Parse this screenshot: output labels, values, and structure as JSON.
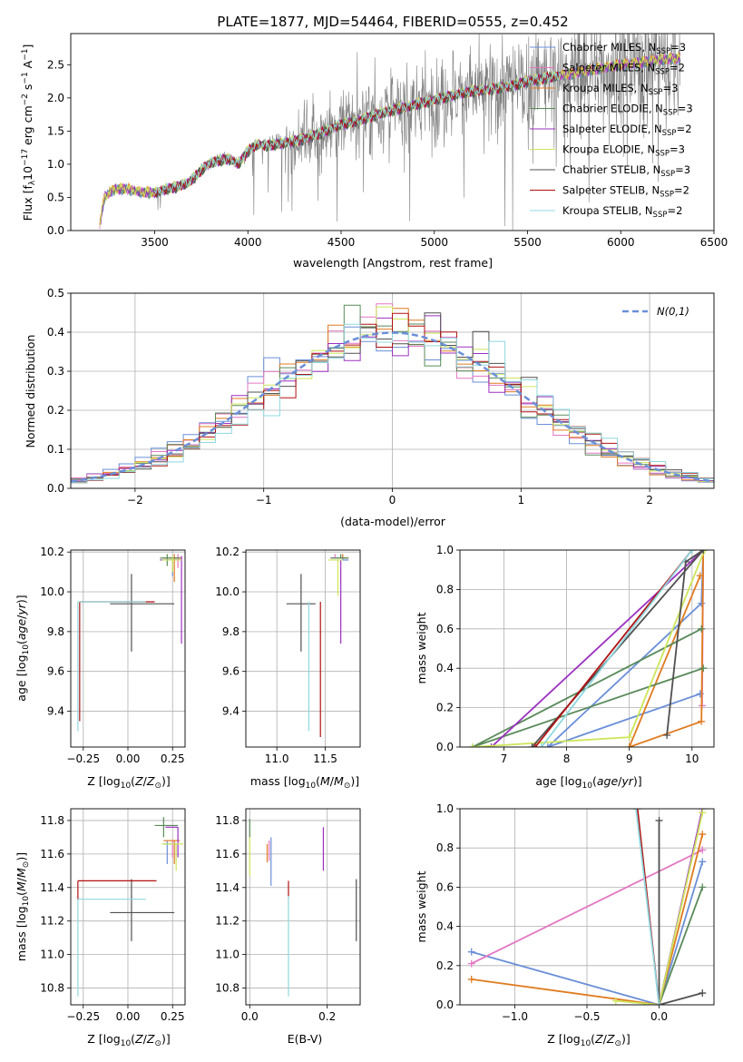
{
  "figure_title": "PLATE=1877, MJD=54464, FIBERID=0555, z=0.452",
  "colors": {
    "Chabrier MILES": "#6a8fd8",
    "Salpeter MILES": "#e377c2",
    "Kroupa MILES": "#e07b20",
    "Chabrier ELODIE": "#5a8a5a",
    "Salpeter ELODIE": "#9b30c0",
    "Kroupa ELODIE": "#cde65a",
    "Chabrier STELIB": "#505050",
    "Salpeter STELIB": "#b01010",
    "Kroupa STELIB": "#8fd8e0",
    "data": "#808080",
    "gaussian": "#6a8fd8"
  },
  "chart_data": [
    {
      "id": "spectrum",
      "type": "line",
      "xlabel": "wavelength [Angstrom, rest frame]",
      "ylabel": "Flux [f_λ 10^-17 erg cm^-2 s^-1 A^-1]",
      "xlim": [
        3050,
        6500
      ],
      "ylim": [
        0,
        2.97
      ],
      "xticks": [
        3500,
        4000,
        4500,
        5000,
        5500,
        6000,
        6500
      ],
      "yticks": [
        0.0,
        0.5,
        1.0,
        1.5,
        2.0,
        2.5
      ],
      "grid": false,
      "legend_position": "upper-right",
      "legend": [
        {
          "model": "Chabrier MILES",
          "nssp": "3"
        },
        {
          "model": "Salpeter MILES",
          "nssp": "2"
        },
        {
          "model": "Kroupa MILES",
          "nssp": "3"
        },
        {
          "model": "Chabrier ELODIE",
          "nssp": "3"
        },
        {
          "model": "Salpeter ELODIE",
          "nssp": "2"
        },
        {
          "model": "Kroupa ELODIE",
          "nssp": "3"
        },
        {
          "model": "Chabrier STELIB",
          "nssp": "3"
        },
        {
          "model": "Salpeter STELIB",
          "nssp": "2"
        },
        {
          "model": "Kroupa STELIB",
          "nssp": "2"
        }
      ],
      "model_continuum": {
        "wavelength": [
          3200,
          3230,
          3280,
          3350,
          3420,
          3500,
          3560,
          3620,
          3680,
          3720,
          3760,
          3800,
          3850,
          3900,
          3950,
          4000,
          4050,
          4100,
          4200,
          4300,
          4400,
          4500,
          4600,
          4700,
          4800,
          4900,
          5000,
          5100,
          5200,
          5300,
          5400,
          5500,
          5600,
          5700,
          5800,
          5900,
          6000,
          6100,
          6200,
          6320
        ],
        "flux": [
          0.0,
          0.5,
          0.62,
          0.63,
          0.58,
          0.57,
          0.62,
          0.66,
          0.72,
          0.82,
          0.94,
          1.02,
          1.06,
          1.08,
          1.0,
          1.2,
          1.3,
          1.28,
          1.32,
          1.38,
          1.48,
          1.6,
          1.66,
          1.76,
          1.83,
          1.9,
          1.97,
          2.04,
          2.1,
          2.13,
          2.17,
          2.25,
          2.3,
          2.35,
          2.4,
          2.45,
          2.5,
          2.53,
          2.57,
          2.6
        ]
      }
    },
    {
      "id": "residuals",
      "type": "histogram",
      "xlabel": "(data-model)/error",
      "ylabel": "Normed distribution",
      "xlim": [
        -2.5,
        2.5
      ],
      "ylim": [
        0,
        0.5
      ],
      "xticks": [
        -2,
        -1,
        0,
        1,
        2
      ],
      "yticks": [
        0.0,
        0.1,
        0.2,
        0.3,
        0.4,
        0.5
      ],
      "grid": true,
      "legend_position": "upper-right",
      "legend_label": "N(0,1)",
      "bins": 40,
      "reference_curve": "standard normal density, dashed"
    },
    {
      "id": "Z-age",
      "type": "scatter",
      "xlabel": "Z [log10(Z/Z⊙)]",
      "ylabel": "age [log10(age/yr)]",
      "xlim": [
        -0.32,
        0.32
      ],
      "ylim": [
        9.22,
        10.21
      ],
      "xticks": [
        -0.25,
        0.0,
        0.25
      ],
      "yticks": [
        9.4,
        9.6,
        9.8,
        10.0,
        10.2
      ],
      "grid": true,
      "points": [
        {
          "model": "Chabrier MILES",
          "x": 0.25,
          "y": 10.16,
          "xerr": [
            0.07,
            0.05
          ],
          "yerr": [
            0.08,
            0.02
          ]
        },
        {
          "model": "Salpeter MILES",
          "x": 0.28,
          "y": 10.17,
          "xerr": [
            0.05,
            0.02
          ],
          "yerr": [
            0.05,
            0.02
          ]
        },
        {
          "model": "Kroupa MILES",
          "x": 0.26,
          "y": 10.17,
          "xerr": [
            0.06,
            0.04
          ],
          "yerr": [
            0.12,
            0.02
          ]
        },
        {
          "model": "Chabrier ELODIE",
          "x": 0.22,
          "y": 10.17,
          "xerr": [
            0.04,
            0.07
          ],
          "yerr": [
            0.04,
            0.02
          ]
        },
        {
          "model": "Salpeter ELODIE",
          "x": 0.3,
          "y": 10.16,
          "xerr": [
            0.12,
            0.0
          ],
          "yerr": [
            0.42,
            0.02
          ]
        },
        {
          "model": "Kroupa ELODIE",
          "x": 0.25,
          "y": 10.16,
          "xerr": [
            0.06,
            0.05
          ],
          "yerr": [
            0.06,
            0.02
          ]
        },
        {
          "model": "Chabrier STELIB",
          "x": 0.02,
          "y": 9.94,
          "xerr": [
            0.12,
            0.24
          ],
          "yerr": [
            0.24,
            0.15
          ]
        },
        {
          "model": "Salpeter STELIB",
          "x": -0.27,
          "y": 9.95,
          "xerr": [
            0.0,
            0.42
          ],
          "yerr": [
            0.6,
            0.0
          ]
        },
        {
          "model": "Kroupa STELIB",
          "x": -0.28,
          "y": 9.95,
          "xerr": [
            0.0,
            0.38
          ],
          "yerr": [
            0.65,
            0.0
          ]
        }
      ]
    },
    {
      "id": "mass-age",
      "type": "scatter",
      "xlabel": "mass [log10(M/M⊙)]",
      "ylabel": "",
      "xlim": [
        10.68,
        11.86
      ],
      "ylim": [
        9.22,
        10.21
      ],
      "xticks": [
        11.0,
        11.5
      ],
      "yticks": [
        9.4,
        9.6,
        9.8,
        10.0,
        10.2
      ],
      "grid": true,
      "points": [
        {
          "model": "Chabrier MILES",
          "x": 11.68,
          "y": 10.16,
          "xerr": [
            0.0,
            0.06
          ],
          "yerr": [
            0.0,
            0.02
          ]
        },
        {
          "model": "Salpeter MILES",
          "x": 11.6,
          "y": 10.17,
          "xerr": [
            0.05,
            0.1
          ],
          "yerr": [
            0.0,
            0.02
          ]
        },
        {
          "model": "Kroupa MILES",
          "x": 11.68,
          "y": 10.17,
          "xerr": [
            0.0,
            0.06
          ],
          "yerr": [
            0.0,
            0.02
          ]
        },
        {
          "model": "Chabrier ELODIE",
          "x": 11.66,
          "y": 10.17,
          "xerr": [
            0.1,
            0.08
          ],
          "yerr": [
            0.0,
            0.02
          ]
        },
        {
          "model": "Salpeter ELODIE",
          "x": 11.66,
          "y": 10.16,
          "xerr": [
            0.0,
            0.0
          ],
          "yerr": [
            0.42,
            0.0
          ]
        },
        {
          "model": "Kroupa ELODIE",
          "x": 11.63,
          "y": 10.16,
          "xerr": [
            0.1,
            0.05
          ],
          "yerr": [
            0.18,
            0.0
          ]
        },
        {
          "model": "Chabrier STELIB",
          "x": 11.25,
          "y": 9.94,
          "xerr": [
            0.15,
            0.15
          ],
          "yerr": [
            0.24,
            0.15
          ]
        },
        {
          "model": "Salpeter STELIB",
          "x": 11.45,
          "y": 9.95,
          "xerr": [
            0.0,
            0.0
          ],
          "yerr": [
            0.68,
            0.0
          ]
        },
        {
          "model": "Kroupa STELIB",
          "x": 11.33,
          "y": 9.95,
          "xerr": [
            0.0,
            0.0
          ],
          "yerr": [
            0.65,
            0.0
          ]
        }
      ]
    },
    {
      "id": "age-weight",
      "type": "line",
      "xlabel": "age [log10(age/yr)]",
      "ylabel": "mass weight",
      "xlim": [
        6.3,
        10.35
      ],
      "ylim": [
        0,
        1
      ],
      "xticks": [
        7,
        8,
        9,
        10
      ],
      "yticks": [
        0.0,
        0.2,
        0.4,
        0.6,
        0.8,
        1.0
      ],
      "grid": true,
      "series": [
        {
          "model": "Chabrier MILES",
          "x": [
            10.13,
            7.7,
            10.15,
            10.18
          ],
          "y": [
            0.27,
            0.0,
            0.73,
            1.0
          ]
        },
        {
          "model": "Salpeter MILES",
          "x": [
            10.16,
            10.18
          ],
          "y": [
            0.21,
            1.0
          ]
        },
        {
          "model": "Kroupa MILES",
          "x": [
            10.13,
            9.0,
            10.15,
            10.18
          ],
          "y": [
            0.87,
            0.0,
            0.13,
            1.0
          ]
        },
        {
          "model": "Chabrier ELODIE",
          "x": [
            10.15,
            6.5,
            10.18
          ],
          "y": [
            0.6,
            0.0,
            0.4
          ]
        },
        {
          "model": "Salpeter ELODIE",
          "x": [
            6.8,
            10.18
          ],
          "y": [
            0.0,
            1.0
          ]
        },
        {
          "model": "Kroupa ELODIE",
          "x": [
            6.5,
            9.0,
            10.2
          ],
          "y": [
            0.0,
            0.05,
            1.0
          ]
        },
        {
          "model": "Chabrier STELIB",
          "x": [
            9.6,
            9.9,
            10.18,
            7.45
          ],
          "y": [
            0.06,
            0.94,
            1.0,
            0.0
          ]
        },
        {
          "model": "Salpeter STELIB",
          "x": [
            7.5,
            10.0
          ],
          "y": [
            0.0,
            1.0
          ]
        },
        {
          "model": "Kroupa STELIB",
          "x": [
            7.6,
            10.0
          ],
          "y": [
            0.0,
            1.0
          ]
        }
      ]
    },
    {
      "id": "Z-mass",
      "type": "scatter",
      "xlabel": "Z [log10(Z/Z⊙)]",
      "ylabel": "mass [log10(M/M⊙)]",
      "xlim": [
        -0.32,
        0.32
      ],
      "ylim": [
        10.7,
        11.87
      ],
      "xticks": [
        -0.25,
        0.0,
        0.25
      ],
      "yticks": [
        10.8,
        11.0,
        11.2,
        11.4,
        11.6,
        11.8
      ],
      "grid": true,
      "points": [
        {
          "model": "Chabrier MILES",
          "x": 0.22,
          "y": 11.66,
          "xerr": [
            0.02,
            0.05
          ],
          "yerr": [
            0.12,
            0.02
          ]
        },
        {
          "model": "Salpeter MILES",
          "x": 0.25,
          "y": 11.68,
          "xerr": [
            0.05,
            0.04
          ],
          "yerr": [
            0.1,
            0.0
          ]
        },
        {
          "model": "Kroupa MILES",
          "x": 0.26,
          "y": 11.68,
          "xerr": [
            0.06,
            0.03
          ],
          "yerr": [
            0.14,
            0.0
          ]
        },
        {
          "model": "Chabrier ELODIE",
          "x": 0.2,
          "y": 11.77,
          "xerr": [
            0.05,
            0.08
          ],
          "yerr": [
            0.07,
            0.05
          ]
        },
        {
          "model": "Salpeter ELODIE",
          "x": 0.28,
          "y": 11.76,
          "xerr": [
            0.07,
            0.0
          ],
          "yerr": [
            0.18,
            0.0
          ]
        },
        {
          "model": "Kroupa ELODIE",
          "x": 0.27,
          "y": 11.66,
          "xerr": [
            0.08,
            0.04
          ],
          "yerr": [
            0.16,
            0.0
          ]
        },
        {
          "model": "Chabrier STELIB",
          "x": 0.02,
          "y": 11.25,
          "xerr": [
            0.12,
            0.24
          ],
          "yerr": [
            0.17,
            0.2
          ]
        },
        {
          "model": "Salpeter STELIB",
          "x": -0.28,
          "y": 11.44,
          "xerr": [
            0.0,
            0.44
          ],
          "yerr": [
            0.11,
            0.0
          ]
        },
        {
          "model": "Kroupa STELIB",
          "x": -0.28,
          "y": 11.33,
          "xerr": [
            0.0,
            0.38
          ],
          "yerr": [
            0.58,
            0.0
          ]
        }
      ]
    },
    {
      "id": "EBV-mass",
      "type": "scatter",
      "xlabel": "E(B-V)",
      "ylabel": "",
      "xlim": [
        -0.01,
        0.285
      ],
      "ylim": [
        10.7,
        11.87
      ],
      "xticks": [
        0.0,
        0.2
      ],
      "yticks": [
        10.8,
        11.0,
        11.2,
        11.4,
        11.6,
        11.8
      ],
      "grid": true,
      "points": [
        {
          "model": "Chabrier MILES",
          "x": 0.055,
          "y": 11.57,
          "xerr": [
            0.0,
            0.0
          ],
          "yerr": [
            0.16,
            0.13
          ]
        },
        {
          "model": "Salpeter MILES",
          "x": 0.05,
          "y": 11.62,
          "xerr": [
            0.0,
            0.0
          ],
          "yerr": [
            0.06,
            0.06
          ]
        },
        {
          "model": "Kroupa MILES",
          "x": 0.045,
          "y": 11.6,
          "xerr": [
            0.0,
            0.0
          ],
          "yerr": [
            0.05,
            0.06
          ]
        },
        {
          "model": "Chabrier ELODIE",
          "x": 0.0,
          "y": 11.73,
          "xerr": [
            0.0,
            0.0
          ],
          "yerr": [
            0.03,
            0.08
          ]
        },
        {
          "model": "Salpeter ELODIE",
          "x": 0.19,
          "y": 11.66,
          "xerr": [
            0.0,
            0.0
          ],
          "yerr": [
            0.16,
            0.1
          ]
        },
        {
          "model": "Kroupa ELODIE",
          "x": 0.0,
          "y": 11.64,
          "xerr": [
            0.0,
            0.0
          ],
          "yerr": [
            0.17,
            0.06
          ]
        },
        {
          "model": "Chabrier STELIB",
          "x": 0.275,
          "y": 11.25,
          "xerr": [
            0.0,
            0.0
          ],
          "yerr": [
            0.17,
            0.2
          ]
        },
        {
          "model": "Salpeter STELIB",
          "x": 0.1,
          "y": 11.4,
          "xerr": [
            0.0,
            0.0
          ],
          "yerr": [
            0.06,
            0.04
          ]
        },
        {
          "model": "Kroupa STELIB",
          "x": 0.1,
          "y": 11.1,
          "xerr": [
            0.0,
            0.0
          ],
          "yerr": [
            0.35,
            0.25
          ]
        }
      ]
    },
    {
      "id": "Z-weight",
      "type": "line",
      "xlabel": "Z [log10(Z/Z⊙)]",
      "ylabel": "mass weight",
      "xlim": [
        -1.38,
        0.38
      ],
      "ylim": [
        0,
        1
      ],
      "xticks": [
        -1.0,
        -0.5,
        0.0
      ],
      "yticks": [
        0.0,
        0.2,
        0.4,
        0.6,
        0.8,
        1.0
      ],
      "grid": true,
      "series": [
        {
          "model": "Chabrier MILES",
          "x": [
            -1.3,
            0.0,
            0.3
          ],
          "y": [
            0.27,
            0.0,
            0.73
          ]
        },
        {
          "model": "Salpeter MILES",
          "x": [
            -1.3,
            0.3
          ],
          "y": [
            0.21,
            0.79
          ]
        },
        {
          "model": "Kroupa MILES",
          "x": [
            -1.3,
            0.0,
            0.3
          ],
          "y": [
            0.13,
            0.0,
            0.87
          ]
        },
        {
          "model": "Chabrier ELODIE",
          "x": [
            0.0,
            0.3
          ],
          "y": [
            0.0,
            0.6
          ]
        },
        {
          "model": "Salpeter ELODIE",
          "x": [
            0.0,
            0.3
          ],
          "y": [
            0.0,
            1.0
          ]
        },
        {
          "model": "Kroupa ELODIE",
          "x": [
            -0.3,
            0.0,
            0.3
          ],
          "y": [
            0.02,
            0.0,
            0.98
          ]
        },
        {
          "model": "Chabrier STELIB",
          "x": [
            0.0,
            0.0,
            0.3
          ],
          "y": [
            0.94,
            0.0,
            0.06
          ]
        },
        {
          "model": "Salpeter STELIB",
          "x": [
            -0.15,
            0.0
          ],
          "y": [
            1.0,
            0.0
          ]
        },
        {
          "model": "Kroupa STELIB",
          "x": [
            -0.16,
            0.0
          ],
          "y": [
            1.0,
            0.0
          ]
        }
      ]
    }
  ]
}
